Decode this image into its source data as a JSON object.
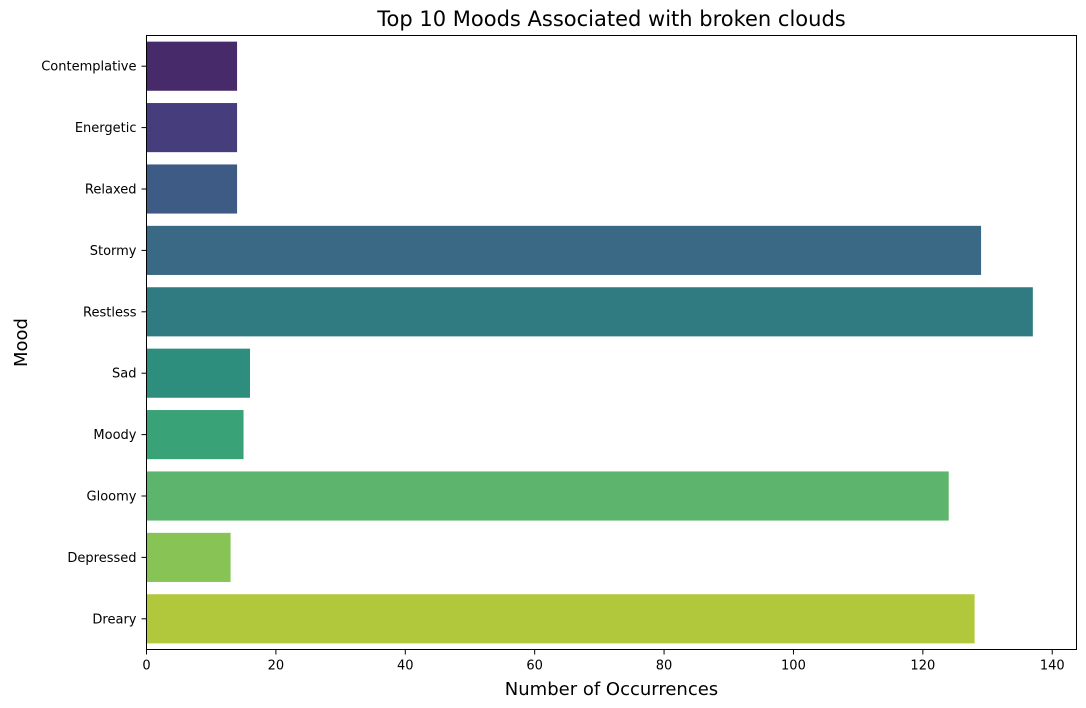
{
  "chart_data": {
    "type": "bar",
    "orientation": "horizontal",
    "title": "Top 10 Moods Associated with broken clouds",
    "xlabel": "Number of Occurrences",
    "ylabel": "Mood",
    "categories": [
      "Contemplative",
      "Energetic",
      "Relaxed",
      "Stormy",
      "Restless",
      "Sad",
      "Moody",
      "Gloomy",
      "Depressed",
      "Dreary"
    ],
    "values": [
      14,
      14,
      14,
      129,
      137,
      16,
      15,
      124,
      13,
      128
    ],
    "colors": [
      "#472a69",
      "#463d7d",
      "#3e5b86",
      "#3a6985",
      "#307b81",
      "#2d8e7e",
      "#3aa277",
      "#5db56d",
      "#88c355",
      "#b1c83c"
    ],
    "xlim": [
      0,
      143.75
    ],
    "xticks": [
      0,
      20,
      40,
      60,
      80,
      100,
      120,
      140
    ],
    "grid": false,
    "legend": "none"
  }
}
